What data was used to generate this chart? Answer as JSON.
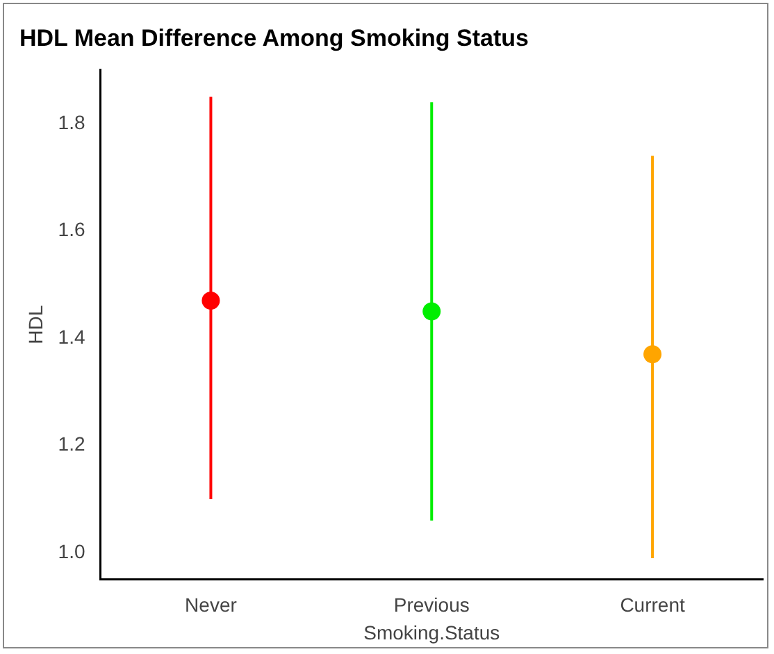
{
  "chart_data": {
    "type": "scatter",
    "title": "HDL Mean Difference Among Smoking Status",
    "xlabel": "Smoking.Status",
    "ylabel": "HDL",
    "categories": [
      "Never",
      "Previous",
      "Current"
    ],
    "values": [
      1.47,
      1.45,
      1.37
    ],
    "errors": [
      [
        1.1,
        1.85
      ],
      [
        1.06,
        1.84
      ],
      [
        0.99,
        1.74
      ]
    ],
    "colors": [
      "#ff0000",
      "#00ee00",
      "#ffa500"
    ],
    "ylim": [
      0.95,
      1.9
    ],
    "yticks": [
      {
        "value": 1,
        "label": "1.0"
      },
      {
        "value": 1.2,
        "label": "1.2"
      },
      {
        "value": 1.4,
        "label": "1.4"
      },
      {
        "value": 1.6,
        "label": "1.6"
      },
      {
        "value": 1.8,
        "label": "1.8"
      }
    ],
    "grid": false,
    "legend": false,
    "marker": "circle"
  }
}
